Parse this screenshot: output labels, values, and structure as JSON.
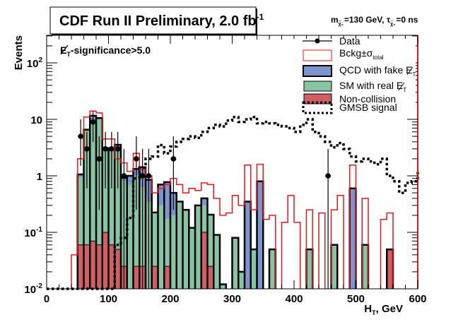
{
  "chart_data": {
    "type": "bar",
    "subtype": "stacked-histogram-log",
    "title": "CDF Run II Preliminary, 2.0 fb",
    "title_superscript": "-1",
    "parameters_label": {
      "m_prefix": "m",
      "m_sub": "χ̃₀",
      "m_value": "=130 GeV,",
      "tau_prefix": "τ",
      "tau_sub": "χ̃₀",
      "tau_value": "=0 ns"
    },
    "cut_label": {
      "main": "E",
      "sub": "T",
      "rest": "-significance>5.0"
    },
    "xlabel": "H",
    "xlabel_sub": "T",
    "xlabel_unit": ", GeV",
    "ylabel": "Events",
    "xlim": [
      0,
      610
    ],
    "ylim": [
      0.01,
      300
    ],
    "yscale": "log",
    "bin_width": 10,
    "x_ticks": [
      "0",
      "100",
      "200",
      "300",
      "400",
      "500",
      "600"
    ],
    "x_tick_values": [
      0,
      100,
      200,
      300,
      400,
      500,
      600
    ],
    "y_ticks": [
      {
        "value": 100,
        "base": "10",
        "exp": "2"
      },
      {
        "value": 10,
        "base": "10",
        "exp": ""
      },
      {
        "value": 1,
        "base": "1",
        "exp": ""
      },
      {
        "value": 0.1,
        "base": "10",
        "exp": "-1"
      },
      {
        "value": 0.01,
        "base": "10",
        "exp": "-2"
      }
    ],
    "legend_position": "top-right",
    "legend": [
      {
        "key": "data",
        "label": "Data"
      },
      {
        "key": "bckg",
        "label": "Bckg±σ",
        "label_sub": "total"
      },
      {
        "key": "qcd",
        "label": "QCD with fake E",
        "label_sub": "T"
      },
      {
        "key": "sm",
        "label": "SM with real E",
        "label_sub": "T"
      },
      {
        "key": "noncoll",
        "label": "Non-collision"
      },
      {
        "key": "gmsb",
        "label": "GMSB signal"
      }
    ],
    "colors": {
      "qcd": "#7b96cf",
      "sm": "#86c4a4",
      "noncoll": "#cf5f62",
      "bckg": "#e8171b",
      "outline": "#000000",
      "data": "#000000"
    },
    "series": [
      {
        "name": "Non-collision",
        "bins": [
          {
            "x": 50,
            "y": 0.06
          },
          {
            "x": 60,
            "y": 0.06
          },
          {
            "x": 70,
            "y": 0.07
          },
          {
            "x": 80,
            "y": 0.06
          },
          {
            "x": 90,
            "y": 0.1
          },
          {
            "x": 100,
            "y": 0.06
          },
          {
            "x": 110,
            "y": 0.05
          },
          {
            "x": 120,
            "y": 0.025
          },
          {
            "x": 140,
            "y": 0.025
          },
          {
            "x": 150,
            "y": 0.025
          },
          {
            "x": 170,
            "y": 0.025
          },
          {
            "x": 190,
            "y": 0.025
          },
          {
            "x": 250,
            "y": 0.1
          },
          {
            "x": 260,
            "y": 0.025
          },
          {
            "x": 550,
            "y": 0.05
          }
        ]
      },
      {
        "name": "SM with real E_T",
        "bins": [
          {
            "x": 50,
            "y": 0.9
          },
          {
            "x": 60,
            "y": 6.5
          },
          {
            "x": 70,
            "y": 10
          },
          {
            "x": 80,
            "y": 10
          },
          {
            "x": 90,
            "y": 3
          },
          {
            "x": 100,
            "y": 3
          },
          {
            "x": 110,
            "y": 3
          },
          {
            "x": 120,
            "y": 0.8
          },
          {
            "x": 130,
            "y": 0.7
          },
          {
            "x": 140,
            "y": 1.0
          },
          {
            "x": 150,
            "y": 0.6
          },
          {
            "x": 160,
            "y": 0.35
          },
          {
            "x": 170,
            "y": 0.2
          },
          {
            "x": 180,
            "y": 0.3
          },
          {
            "x": 190,
            "y": 0.15
          },
          {
            "x": 200,
            "y": 0.2
          },
          {
            "x": 210,
            "y": 0.35
          },
          {
            "x": 220,
            "y": 0.25
          },
          {
            "x": 230,
            "y": 0.12
          },
          {
            "x": 240,
            "y": 0.3
          },
          {
            "x": 250,
            "y": 0.2
          },
          {
            "x": 260,
            "y": 0.18
          },
          {
            "x": 270,
            "y": 0.09
          },
          {
            "x": 280,
            "y": 0.012
          },
          {
            "x": 300,
            "y": 0.08
          },
          {
            "x": 310,
            "y": 0.02
          },
          {
            "x": 330,
            "y": 0.05
          },
          {
            "x": 360,
            "y": 0.05
          },
          {
            "x": 420,
            "y": 0.05
          },
          {
            "x": 460,
            "y": 0.06
          },
          {
            "x": 510,
            "y": 0.06
          }
        ]
      },
      {
        "name": "QCD with fake E_T",
        "bins": [
          {
            "x": 50,
            "y": 0.1
          },
          {
            "x": 70,
            "y": 1.5
          },
          {
            "x": 80,
            "y": 0.5
          },
          {
            "x": 110,
            "y": 0.5
          },
          {
            "x": 120,
            "y": 0.1
          },
          {
            "x": 130,
            "y": 0.3
          },
          {
            "x": 140,
            "y": 0.3
          },
          {
            "x": 150,
            "y": 0.8
          },
          {
            "x": 160,
            "y": 0.5
          },
          {
            "x": 180,
            "y": 0.4
          },
          {
            "x": 190,
            "y": 0.6
          },
          {
            "x": 200,
            "y": 0.3
          },
          {
            "x": 250,
            "y": 0.1
          },
          {
            "x": 320,
            "y": 0.35
          },
          {
            "x": 340,
            "y": 0.8
          },
          {
            "x": 330,
            "y": 0.0
          },
          {
            "x": 490,
            "y": 0.6
          }
        ]
      },
      {
        "name": "Bckg±σ_total (upper envelope)",
        "bins": [
          {
            "x": 40,
            "y": 0.04
          },
          {
            "x": 50,
            "y": 2.0
          },
          {
            "x": 60,
            "y": 11
          },
          {
            "x": 70,
            "y": 14
          },
          {
            "x": 80,
            "y": 13
          },
          {
            "x": 90,
            "y": 4.5
          },
          {
            "x": 100,
            "y": 4.5
          },
          {
            "x": 110,
            "y": 2.0
          },
          {
            "x": 120,
            "y": 1.7
          },
          {
            "x": 130,
            "y": 1.2
          },
          {
            "x": 140,
            "y": 2.5
          },
          {
            "x": 150,
            "y": 1.3
          },
          {
            "x": 160,
            "y": 1.0
          },
          {
            "x": 170,
            "y": 0.5
          },
          {
            "x": 180,
            "y": 0.6
          },
          {
            "x": 190,
            "y": 0.7
          },
          {
            "x": 200,
            "y": 0.9
          },
          {
            "x": 210,
            "y": 0.7
          },
          {
            "x": 220,
            "y": 0.5
          },
          {
            "x": 230,
            "y": 0.6
          },
          {
            "x": 240,
            "y": 0.55
          },
          {
            "x": 250,
            "y": 0.75
          },
          {
            "x": 260,
            "y": 0.7
          },
          {
            "x": 270,
            "y": 0.4
          },
          {
            "x": 280,
            "y": 0.2
          },
          {
            "x": 290,
            "y": 0.22
          },
          {
            "x": 300,
            "y": 0.45
          },
          {
            "x": 310,
            "y": 0.3
          },
          {
            "x": 320,
            "y": 1.55
          },
          {
            "x": 330,
            "y": 0.25
          },
          {
            "x": 340,
            "y": 1.6
          },
          {
            "x": 350,
            "y": 0.17
          },
          {
            "x": 360,
            "y": 0.2
          },
          {
            "x": 380,
            "y": 0.15
          },
          {
            "x": 390,
            "y": 0.45
          },
          {
            "x": 400,
            "y": 0.15
          },
          {
            "x": 420,
            "y": 0.25
          },
          {
            "x": 440,
            "y": 0.22
          },
          {
            "x": 460,
            "y": 0.25
          },
          {
            "x": 470,
            "y": 0.45
          },
          {
            "x": 490,
            "y": 1.55
          },
          {
            "x": 510,
            "y": 0.4
          },
          {
            "x": 540,
            "y": 0.17
          },
          {
            "x": 550,
            "y": 0.22
          }
        ]
      },
      {
        "name": "GMSB signal",
        "bins": [
          {
            "x": 110,
            "y": 0.06
          },
          {
            "x": 120,
            "y": 0.08
          },
          {
            "x": 130,
            "y": 0.18
          },
          {
            "x": 140,
            "y": 0.9
          },
          {
            "x": 150,
            "y": 1.4
          },
          {
            "x": 160,
            "y": 2.0
          },
          {
            "x": 170,
            "y": 2.2
          },
          {
            "x": 180,
            "y": 3.5
          },
          {
            "x": 190,
            "y": 2.5
          },
          {
            "x": 200,
            "y": 3.3
          },
          {
            "x": 210,
            "y": 4.0
          },
          {
            "x": 220,
            "y": 4.5
          },
          {
            "x": 230,
            "y": 5.0
          },
          {
            "x": 240,
            "y": 4.7
          },
          {
            "x": 250,
            "y": 6.0
          },
          {
            "x": 260,
            "y": 7.0
          },
          {
            "x": 270,
            "y": 8.0
          },
          {
            "x": 280,
            "y": 7.5
          },
          {
            "x": 290,
            "y": 9.5
          },
          {
            "x": 300,
            "y": 11
          },
          {
            "x": 310,
            "y": 9.0
          },
          {
            "x": 320,
            "y": 10
          },
          {
            "x": 330,
            "y": 11
          },
          {
            "x": 340,
            "y": 8.5
          },
          {
            "x": 350,
            "y": 9.0
          },
          {
            "x": 360,
            "y": 8.5
          },
          {
            "x": 370,
            "y": 8.0
          },
          {
            "x": 380,
            "y": 7.5
          },
          {
            "x": 390,
            "y": 7.0
          },
          {
            "x": 400,
            "y": 6.0
          },
          {
            "x": 410,
            "y": 8.0
          },
          {
            "x": 420,
            "y": 10
          },
          {
            "x": 430,
            "y": 6.0
          },
          {
            "x": 440,
            "y": 5.0
          },
          {
            "x": 450,
            "y": 4.0
          },
          {
            "x": 460,
            "y": 3.2
          },
          {
            "x": 470,
            "y": 3.8
          },
          {
            "x": 480,
            "y": 3.0
          },
          {
            "x": 490,
            "y": 2.2
          },
          {
            "x": 500,
            "y": 1.8
          },
          {
            "x": 510,
            "y": 2.0
          },
          {
            "x": 520,
            "y": 1.8
          },
          {
            "x": 530,
            "y": 1.6
          },
          {
            "x": 540,
            "y": 2.0
          },
          {
            "x": 550,
            "y": 1.0
          },
          {
            "x": 560,
            "y": 0.8
          },
          {
            "x": 570,
            "y": 0.5
          },
          {
            "x": 580,
            "y": 0.75
          },
          {
            "x": 590,
            "y": 0.8
          },
          {
            "x": 600,
            "y": 1.3
          }
        ]
      }
    ],
    "data_points": [
      {
        "x": 55,
        "y": 5,
        "err_lo": 1.5,
        "err_hi": 10
      },
      {
        "x": 65,
        "y": 3,
        "err_lo": 0.6,
        "err_hi": 6
      },
      {
        "x": 75,
        "y": 9,
        "err_lo": 4,
        "err_hi": 14
      },
      {
        "x": 85,
        "y": 2,
        "err_lo": 0.25,
        "err_hi": 5
      },
      {
        "x": 95,
        "y": 3,
        "err_lo": 0.6,
        "err_hi": 6
      },
      {
        "x": 105,
        "y": 3,
        "err_lo": 0.6,
        "err_hi": 6
      },
      {
        "x": 115,
        "y": 3,
        "err_lo": 0.6,
        "err_hi": 6
      },
      {
        "x": 125,
        "y": 1,
        "err_lo": 0.01,
        "err_hi": 3
      },
      {
        "x": 145,
        "y": 2,
        "err_lo": 0.25,
        "err_hi": 5
      },
      {
        "x": 155,
        "y": 1,
        "err_lo": 0.01,
        "err_hi": 3
      },
      {
        "x": 165,
        "y": 1,
        "err_lo": 0.01,
        "err_hi": 3
      },
      {
        "x": 205,
        "y": 2,
        "err_lo": 0.25,
        "err_hi": 5
      },
      {
        "x": 455,
        "y": 1,
        "err_lo": 0.01,
        "err_hi": 3
      }
    ]
  }
}
